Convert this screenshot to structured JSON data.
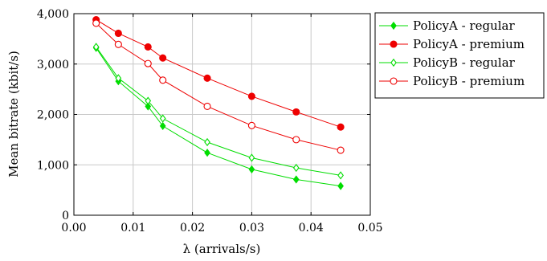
{
  "chart_data": {
    "type": "line",
    "xlabel": "λ (arrivals/s)",
    "ylabel": "Mean bitrate (kbit/s)",
    "xlim": [
      0,
      0.05
    ],
    "ylim": [
      0,
      4000
    ],
    "xticks": [
      "0.00",
      "0.01",
      "0.02",
      "0.03",
      "0.04",
      "0.05"
    ],
    "yticks": [
      "0",
      "1,000",
      "2,000",
      "3,000",
      "4,000"
    ],
    "grid": true,
    "legend_position": "outside-right",
    "series": [
      {
        "name": "PolicyA - regular",
        "color": "#00dd00",
        "marker": "diamond-filled",
        "points": [
          [
            0.00375,
            3320
          ],
          [
            0.0075,
            2660
          ],
          [
            0.0125,
            2160
          ],
          [
            0.015,
            1770
          ],
          [
            0.0225,
            1240
          ],
          [
            0.03,
            910
          ],
          [
            0.0375,
            710
          ],
          [
            0.045,
            580
          ]
        ]
      },
      {
        "name": "PolicyA - premium",
        "color": "#ee0000",
        "marker": "circle-filled",
        "points": [
          [
            0.00375,
            3880
          ],
          [
            0.0075,
            3610
          ],
          [
            0.0125,
            3340
          ],
          [
            0.015,
            3120
          ],
          [
            0.0225,
            2720
          ],
          [
            0.03,
            2360
          ],
          [
            0.0375,
            2050
          ],
          [
            0.045,
            1750
          ]
        ]
      },
      {
        "name": "PolicyB - regular",
        "color": "#00dd00",
        "marker": "diamond-open",
        "points": [
          [
            0.00375,
            3340
          ],
          [
            0.0075,
            2720
          ],
          [
            0.0125,
            2270
          ],
          [
            0.015,
            1920
          ],
          [
            0.0225,
            1450
          ],
          [
            0.03,
            1140
          ],
          [
            0.0375,
            940
          ],
          [
            0.045,
            790
          ]
        ]
      },
      {
        "name": "PolicyB - premium",
        "color": "#ee0000",
        "marker": "circle-open",
        "points": [
          [
            0.00375,
            3810
          ],
          [
            0.0075,
            3390
          ],
          [
            0.0125,
            3010
          ],
          [
            0.015,
            2680
          ],
          [
            0.0225,
            2160
          ],
          [
            0.03,
            1780
          ],
          [
            0.0375,
            1500
          ],
          [
            0.045,
            1290
          ]
        ]
      }
    ]
  }
}
